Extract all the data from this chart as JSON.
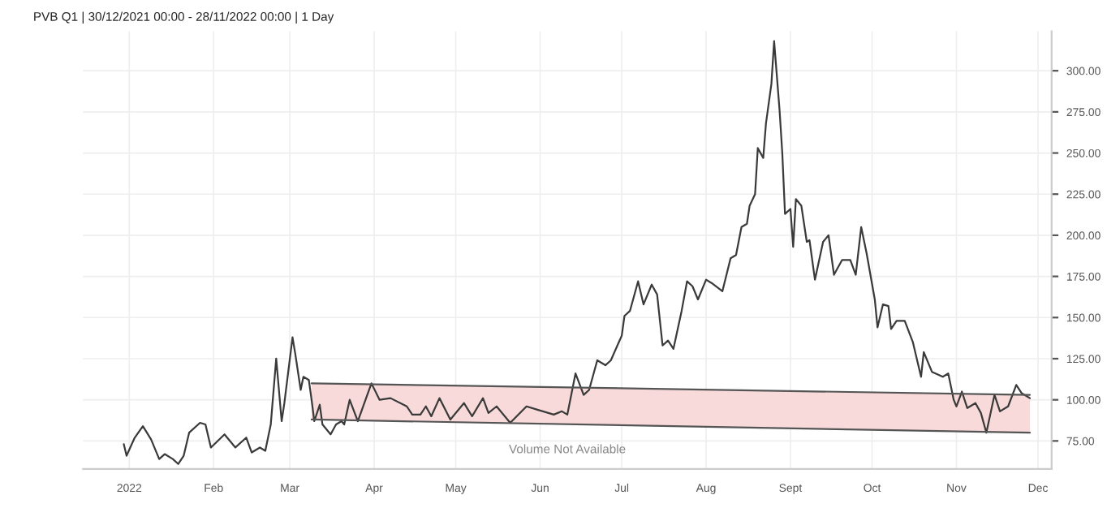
{
  "chart_data": {
    "type": "line",
    "title": "PVB Q1 | 30/12/2021 00:00 - 28/11/2022 00:00 | 1 Day",
    "annotations": [
      "Volume Not Available"
    ],
    "series": [
      {
        "color": "#3a3a3a",
        "x": [
          "2021-12-30",
          "2021-12-31",
          "2022-01-03",
          "2022-01-06",
          "2022-01-09",
          "2022-01-12",
          "2022-01-14",
          "2022-01-17",
          "2022-01-19",
          "2022-01-21",
          "2022-01-23",
          "2022-01-27",
          "2022-01-29",
          "2022-01-31",
          "2022-02-05",
          "2022-02-09",
          "2022-02-13",
          "2022-02-15",
          "2022-02-18",
          "2022-02-20",
          "2022-02-22",
          "2022-02-24",
          "2022-02-26",
          "2022-02-27",
          "2022-03-02",
          "2022-03-03",
          "2022-03-05",
          "2022-03-06",
          "2022-03-08",
          "2022-03-09",
          "2022-03-10",
          "2022-03-12",
          "2022-03-13",
          "2022-03-16",
          "2022-03-18",
          "2022-03-20",
          "2022-03-21",
          "2022-03-23",
          "2022-03-26",
          "2022-03-31",
          "2022-04-03",
          "2022-04-07",
          "2022-04-13",
          "2022-04-15",
          "2022-04-18",
          "2022-04-20",
          "2022-04-22",
          "2022-04-25",
          "2022-04-29",
          "2022-05-04",
          "2022-05-07",
          "2022-05-11",
          "2022-05-13",
          "2022-05-16",
          "2022-05-21",
          "2022-05-27",
          "2022-05-31",
          "2022-06-06",
          "2022-06-09",
          "2022-06-11",
          "2022-06-14",
          "2022-06-17",
          "2022-06-19",
          "2022-06-22",
          "2022-06-25",
          "2022-06-27",
          "2022-07-01",
          "2022-07-02",
          "2022-07-04",
          "2022-07-07",
          "2022-07-09",
          "2022-07-12",
          "2022-07-14",
          "2022-07-16",
          "2022-07-18",
          "2022-07-20",
          "2022-07-23",
          "2022-07-25",
          "2022-07-27",
          "2022-07-29",
          "2022-08-01",
          "2022-08-03",
          "2022-08-07",
          "2022-08-10",
          "2022-08-12",
          "2022-08-14",
          "2022-08-16",
          "2022-08-17",
          "2022-08-19",
          "2022-08-20",
          "2022-08-22",
          "2022-08-23",
          "2022-08-25",
          "2022-08-26",
          "2022-08-28",
          "2022-08-29",
          "2022-08-30",
          "2022-09-01",
          "2022-09-02",
          "2022-09-03",
          "2022-09-05",
          "2022-09-07",
          "2022-09-08",
          "2022-09-10",
          "2022-09-13",
          "2022-09-15",
          "2022-09-17",
          "2022-09-20",
          "2022-09-23",
          "2022-09-25",
          "2022-09-27",
          "2022-09-29",
          "2022-10-02",
          "2022-10-03",
          "2022-10-05",
          "2022-10-07",
          "2022-10-08",
          "2022-10-10",
          "2022-10-13",
          "2022-10-16",
          "2022-10-19",
          "2022-10-20",
          "2022-10-23",
          "2022-10-27",
          "2022-10-29",
          "2022-10-31",
          "2022-11-01",
          "2022-11-03",
          "2022-11-05",
          "2022-11-08",
          "2022-11-10",
          "2022-11-12",
          "2022-11-15",
          "2022-11-17",
          "2022-11-20",
          "2022-11-23",
          "2022-11-25",
          "2022-11-28"
        ],
        "values": [
          73,
          66,
          77,
          84,
          76,
          64,
          67,
          64,
          61,
          66,
          80,
          86,
          85,
          71,
          79,
          71,
          77,
          68,
          71,
          69,
          85,
          125,
          87,
          98,
          138,
          128,
          106,
          114,
          112,
          100,
          87,
          97,
          85,
          79,
          85,
          87,
          85,
          100,
          87,
          110,
          100,
          101,
          96,
          91,
          91,
          96,
          90,
          101,
          88,
          98,
          90,
          101,
          92,
          96,
          86,
          96,
          94,
          91,
          93,
          91,
          116,
          103,
          106,
          124,
          121,
          124,
          139,
          151,
          154,
          172,
          158,
          170,
          164,
          133,
          136,
          131,
          154,
          172,
          169,
          161,
          173,
          171,
          166,
          186,
          188,
          205,
          207,
          218,
          225,
          253,
          247,
          268,
          292,
          318,
          276,
          250,
          213,
          216,
          193,
          222,
          218,
          196,
          197,
          173,
          196,
          200,
          176,
          185,
          185,
          176,
          205,
          189,
          161,
          144,
          158,
          157,
          143,
          148,
          148,
          135,
          114,
          129,
          117,
          114,
          116,
          100,
          96,
          105,
          95,
          98,
          92,
          80,
          103,
          93,
          96,
          109,
          104,
          101
        ]
      },
      {
        "color": "#555555",
        "x": [
          "2022-03-09",
          "2022-11-28"
        ],
        "values": [
          110,
          103
        ],
        "lower": [
          88,
          80
        ],
        "upper": [
          110,
          103
        ]
      },
      {
        "color": "#555555",
        "x": [
          "2022-03-09",
          "2022-11-28"
        ],
        "values": [
          88,
          80
        ]
      }
    ],
    "xlim": [
      "2021-12-15",
      "2022-12-06"
    ],
    "xticks": [
      {
        "value": "2022-01-01",
        "label": "2022"
      },
      {
        "value": "2022-02-01",
        "label": "Feb"
      },
      {
        "value": "2022-03-01",
        "label": "Mar"
      },
      {
        "value": "2022-04-01",
        "label": "Apr"
      },
      {
        "value": "2022-05-01",
        "label": "May"
      },
      {
        "value": "2022-06-01",
        "label": "Jun"
      },
      {
        "value": "2022-07-01",
        "label": "Jul"
      },
      {
        "value": "2022-08-01",
        "label": "Aug"
      },
      {
        "value": "2022-09-01",
        "label": "Sept"
      },
      {
        "value": "2022-10-01",
        "label": "Oct"
      },
      {
        "value": "2022-11-01",
        "label": "Nov"
      },
      {
        "value": "2022-12-01",
        "label": "Dec"
      }
    ],
    "ylim": [
      58,
      324
    ],
    "yticks": [
      {
        "value": 75,
        "label": "75.00"
      },
      {
        "value": 100,
        "label": "100.00"
      },
      {
        "value": 125,
        "label": "125.00"
      },
      {
        "value": 150,
        "label": "150.00"
      },
      {
        "value": 175,
        "label": "175.00"
      },
      {
        "value": 200,
        "label": "200.00"
      },
      {
        "value": 225,
        "label": "225.00"
      },
      {
        "value": 250,
        "label": "250.00"
      },
      {
        "value": 275,
        "label": "275.00"
      },
      {
        "value": 300,
        "label": "300.00"
      }
    ],
    "grid": true,
    "legend": false
  }
}
